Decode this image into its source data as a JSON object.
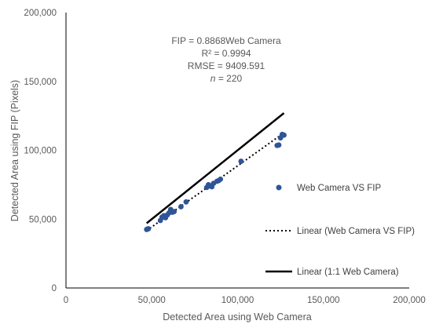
{
  "chart_data": {
    "type": "scatter",
    "xlabel": "Detected Area using Web Camera",
    "ylabel": "Detected Area using FIP (Pixels)",
    "xlim": [
      0,
      200000
    ],
    "ylim": [
      0,
      200000
    ],
    "x_ticks": [
      0,
      50000,
      100000,
      150000,
      200000
    ],
    "y_ticks": [
      0,
      50000,
      100000,
      150000,
      200000
    ],
    "x_tick_labels": [
      "0",
      "50,000",
      "100,000",
      "150,000",
      "200,000"
    ],
    "y_tick_labels": [
      "0",
      "50,000",
      "100,000",
      "150,000",
      "200,000"
    ],
    "grid": false,
    "legend_position": "right",
    "annotation": {
      "equation": "FIP = 0.8868Web Camera",
      "r2": "R² = 0.9994",
      "rmse": "RMSE = 9409.591",
      "n_symbol": "n",
      "n_value": " = 220"
    },
    "series": [
      {
        "name": "Web Camera VS FIP",
        "kind": "scatter",
        "color": "#2f5597",
        "x": [
          47000,
          47500,
          48000,
          55000,
          56000,
          57000,
          58000,
          59000,
          60000,
          61000,
          62000,
          63000,
          67000,
          70000,
          82000,
          83000,
          84000,
          85000,
          86000,
          88000,
          89000,
          90000,
          102000,
          123000,
          124000,
          125000,
          126000,
          127000
        ],
        "y": [
          42500,
          42800,
          43000,
          49000,
          51500,
          52500,
          51000,
          53000,
          54500,
          57000,
          55000,
          55500,
          59000,
          62500,
          73000,
          75000,
          74000,
          73500,
          76000,
          77500,
          78000,
          79000,
          92000,
          103500,
          103800,
          109000,
          111500,
          111000
        ]
      },
      {
        "name": "Linear (Web Camera VS FIP)",
        "kind": "trendline",
        "style": "dotted",
        "color": "#000000",
        "slope": 0.8868,
        "x_range": [
          47000,
          127000
        ]
      },
      {
        "name": "Linear (1:1 Web Camera)",
        "kind": "trendline",
        "style": "solid",
        "color": "#000000",
        "slope": 1,
        "x_range": [
          47000,
          127000
        ]
      }
    ]
  }
}
